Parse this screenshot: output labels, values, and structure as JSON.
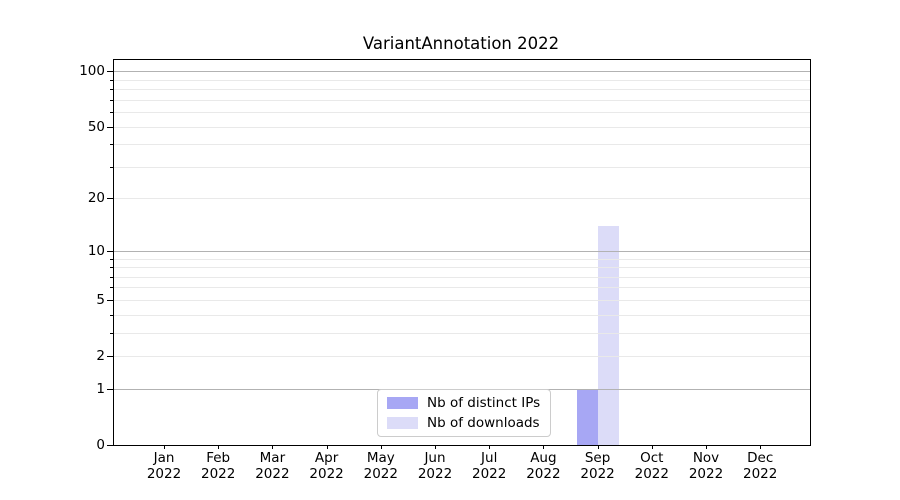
{
  "chart_data": {
    "type": "bar",
    "title": "VariantAnnotation 2022",
    "categories": [
      "Jan",
      "Feb",
      "Mar",
      "Apr",
      "May",
      "Jun",
      "Jul",
      "Aug",
      "Sep",
      "Oct",
      "Nov",
      "Dec"
    ],
    "category_year": "2022",
    "series": [
      {
        "name": "Nb of distinct IPs",
        "color": "#a7a7f4",
        "values": [
          0,
          0,
          0,
          0,
          0,
          0,
          0,
          0,
          1,
          0,
          0,
          0
        ]
      },
      {
        "name": "Nb of downloads",
        "color": "#dcdcf8",
        "values": [
          0,
          0,
          0,
          0,
          0,
          0,
          0,
          0,
          14,
          0,
          0,
          0
        ]
      }
    ],
    "yscale": "log1p",
    "ylim": [
      0,
      115
    ],
    "yticks_labeled": [
      0,
      1,
      2,
      5,
      10,
      20,
      50,
      100
    ],
    "ygrid_major": [
      1,
      10,
      100
    ],
    "yticks_minor": [
      2,
      3,
      4,
      5,
      6,
      7,
      8,
      9,
      20,
      30,
      40,
      50,
      60,
      70,
      80,
      90
    ],
    "grid": "on",
    "legend_position": "bottom-center",
    "colors": {
      "major_grid": "#b2b2b2",
      "minor_grid": "#e9e9e9",
      "spine": "#000000",
      "background": "#ffffff"
    }
  }
}
